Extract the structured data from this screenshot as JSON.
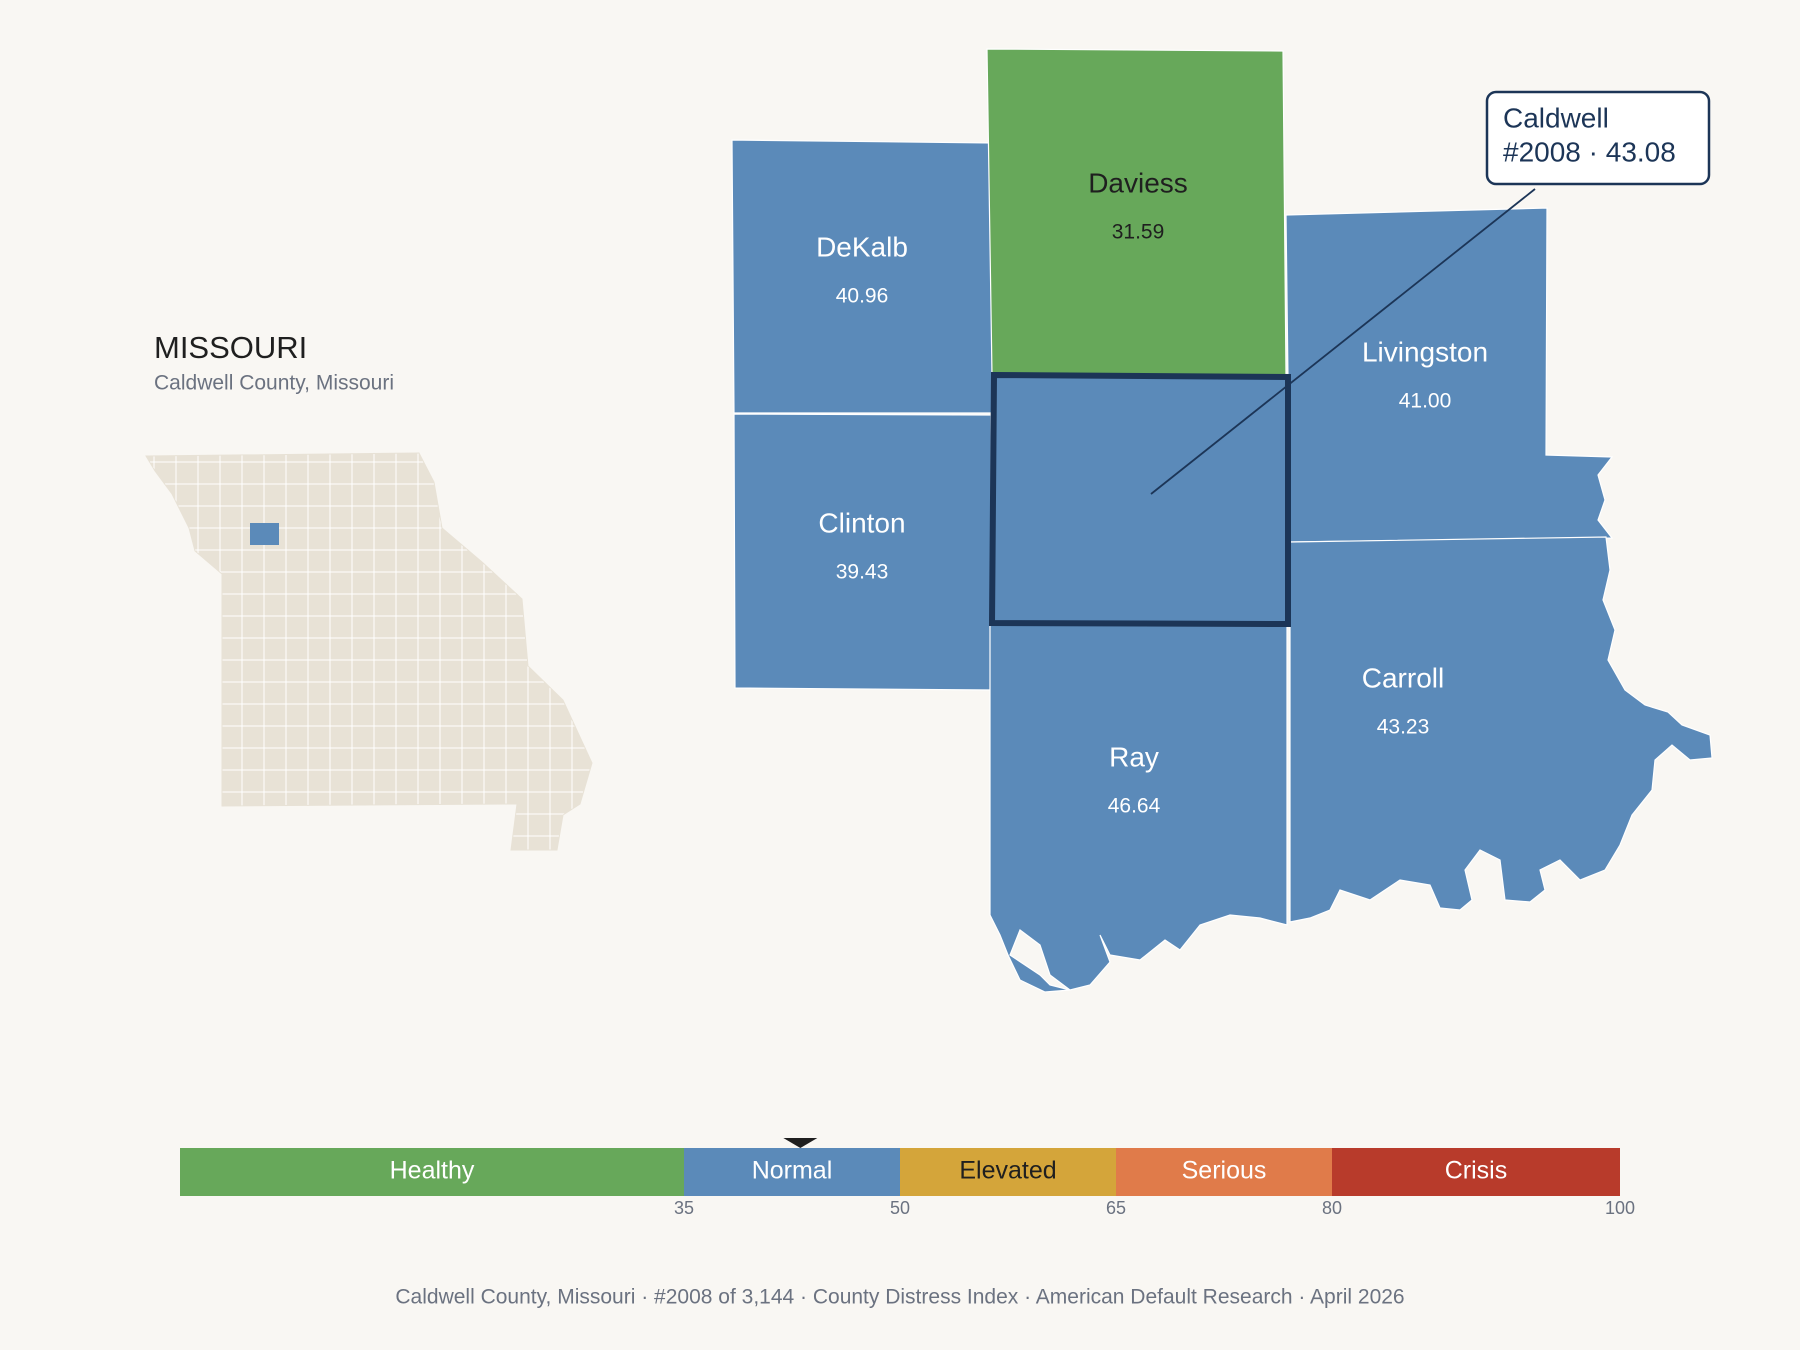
{
  "inset": {
    "title": "MISSOURI",
    "subtitle": "Caldwell County, Missouri"
  },
  "counties": [
    {
      "name": "DeKalb",
      "score": "40.96"
    },
    {
      "name": "Daviess",
      "score": "31.59"
    },
    {
      "name": "Clinton",
      "score": "39.43"
    },
    {
      "name": "Livingston",
      "score": "41.00"
    },
    {
      "name": "Carroll",
      "score": "43.23"
    },
    {
      "name": "Ray",
      "score": "46.64"
    }
  ],
  "callout": {
    "line1": "Caldwell",
    "line2": "#2008 · 43.08"
  },
  "scale": {
    "range": [
      0,
      100
    ],
    "ticks": [
      35,
      50,
      65,
      80,
      100
    ],
    "marker": 43.08,
    "bands": [
      {
        "label": "Healthy",
        "color": "#67a85a"
      },
      {
        "label": "Normal",
        "color": "#5b8ab9"
      },
      {
        "label": "Elevated",
        "color": "#d4a53a"
      },
      {
        "label": "Serious",
        "color": "#e07b4a"
      },
      {
        "label": "Crisis",
        "color": "#b83b2b"
      }
    ]
  },
  "footer": "Caldwell County, Missouri  ·  #2008 of 3,144  ·  County Distress Index  ·  American Default Research  ·  April 2026"
}
